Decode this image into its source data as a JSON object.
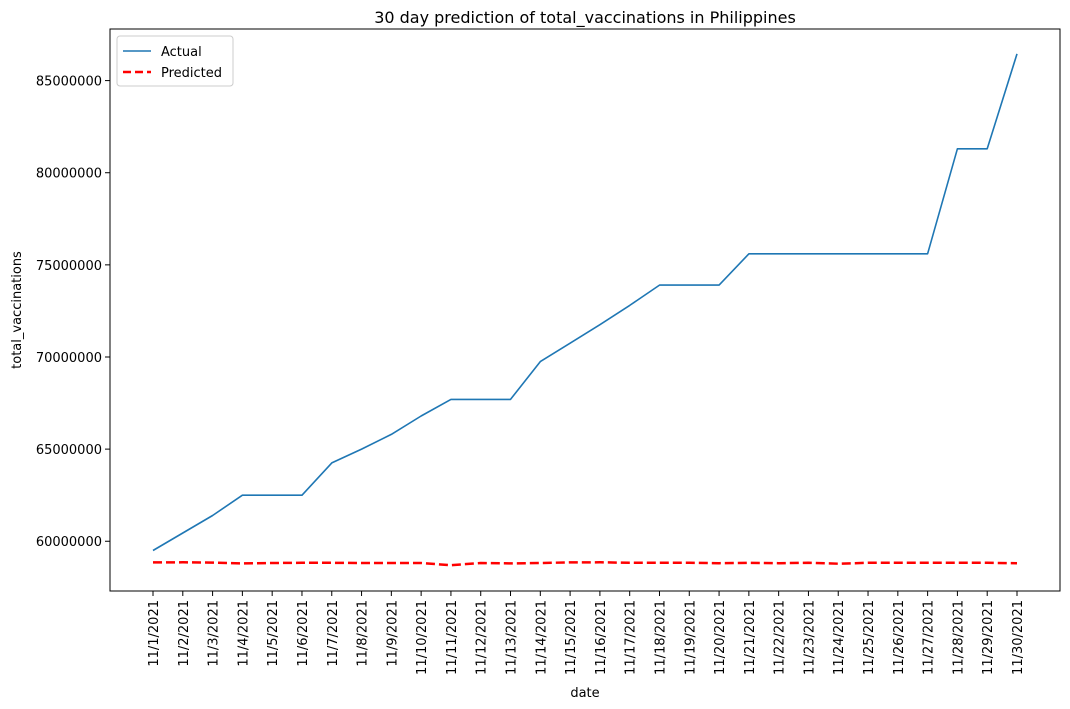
{
  "chart_data": {
    "type": "line",
    "title": "30 day prediction of total_vaccinations in Philippines",
    "xlabel": "date",
    "ylabel": "total_vaccinations",
    "categories": [
      "11/1/2021",
      "11/2/2021",
      "11/3/2021",
      "11/4/2021",
      "11/5/2021",
      "11/6/2021",
      "11/7/2021",
      "11/8/2021",
      "11/9/2021",
      "11/10/2021",
      "11/11/2021",
      "11/12/2021",
      "11/13/2021",
      "11/14/2021",
      "11/15/2021",
      "11/16/2021",
      "11/17/2021",
      "11/18/2021",
      "11/19/2021",
      "11/20/2021",
      "11/21/2021",
      "11/22/2021",
      "11/23/2021",
      "11/24/2021",
      "11/25/2021",
      "11/26/2021",
      "11/27/2021",
      "11/28/2021",
      "11/29/2021",
      "11/30/2021"
    ],
    "yticks": [
      60000000,
      65000000,
      70000000,
      75000000,
      80000000,
      85000000
    ],
    "ytick_labels": [
      "60000000",
      "65000000",
      "70000000",
      "75000000",
      "80000000",
      "85000000"
    ],
    "ylim": [
      57300000,
      87800000
    ],
    "grid": false,
    "legend_position": "top-left",
    "series": [
      {
        "name": "Actual",
        "color": "#1f77b4",
        "style": "solid",
        "values": [
          59500000,
          60450000,
          61400000,
          62500000,
          62500000,
          62500000,
          64250000,
          65000000,
          65800000,
          66800000,
          67700000,
          67700000,
          67700000,
          69750000,
          70750000,
          71750000,
          72800000,
          73900000,
          73900000,
          73900000,
          75600000,
          75600000,
          75600000,
          75600000,
          75600000,
          75600000,
          75600000,
          81300000,
          81300000,
          86450000
        ]
      },
      {
        "name": "Predicted",
        "color": "#ff0000",
        "style": "dashed",
        "values": [
          58850000,
          58860000,
          58840000,
          58800000,
          58820000,
          58830000,
          58830000,
          58820000,
          58820000,
          58820000,
          58700000,
          58820000,
          58800000,
          58820000,
          58850000,
          58860000,
          58830000,
          58830000,
          58830000,
          58810000,
          58830000,
          58810000,
          58830000,
          58780000,
          58830000,
          58830000,
          58830000,
          58830000,
          58830000,
          58810000
        ]
      }
    ]
  }
}
